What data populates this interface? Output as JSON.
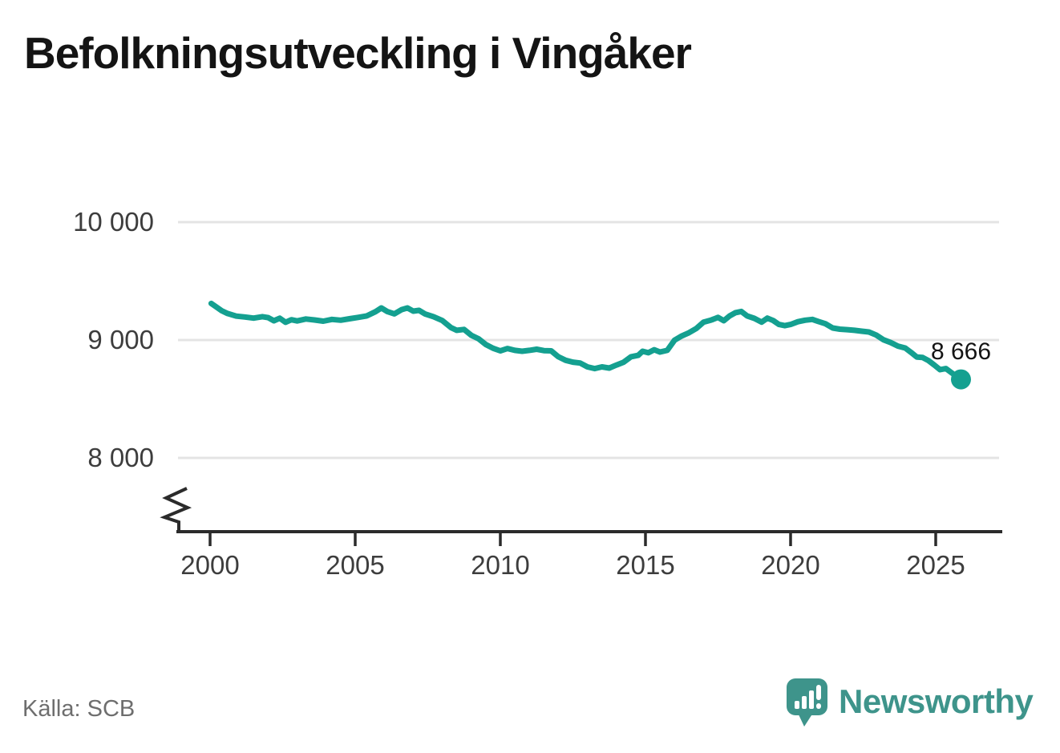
{
  "title": "Befolkningsutveckling i Vingåker",
  "source": "Källa: SCB",
  "brand": {
    "name": "Newsworthy",
    "icon": "speech-bubble-chart-icon",
    "color": "#3e948b"
  },
  "colors": {
    "line": "#14a090",
    "axis": "#2b2b2b",
    "gridline": "#e4e4e4",
    "tick_label": "#3d3d3d",
    "title": "#141414",
    "end_label": "#141414",
    "source": "#6e6e6e",
    "background": "#ffffff"
  },
  "chart_data": {
    "type": "line",
    "title": "Befolkningsutveckling i Vingåker",
    "end_label": "8 666",
    "end_value": 8666,
    "grid": "horizontal",
    "legend": "none",
    "y_axis_break": true,
    "xlim": [
      1998.8,
      2027.3
    ],
    "ylim_visible": [
      7450,
      10250
    ],
    "x_ticks": [
      {
        "label": "2000",
        "value": 2000
      },
      {
        "label": "2005",
        "value": 2005
      },
      {
        "label": "2010",
        "value": 2010
      },
      {
        "label": "2015",
        "value": 2015
      },
      {
        "label": "2020",
        "value": 2020
      },
      {
        "label": "2025",
        "value": 2025
      }
    ],
    "y_ticks": [
      {
        "label": "10 000",
        "value": 10000
      },
      {
        "label": "9 000",
        "value": 9000
      },
      {
        "label": "8 000",
        "value": 8000
      }
    ],
    "series": [
      {
        "points": [
          [
            2000.04,
            9310
          ],
          [
            2000.2,
            9283
          ],
          [
            2000.4,
            9248
          ],
          [
            2000.6,
            9225
          ],
          [
            2000.9,
            9203
          ],
          [
            2001.2,
            9195
          ],
          [
            2001.5,
            9186
          ],
          [
            2001.8,
            9198
          ],
          [
            2002.0,
            9190
          ],
          [
            2002.2,
            9163
          ],
          [
            2002.4,
            9185
          ],
          [
            2002.6,
            9150
          ],
          [
            2002.8,
            9172
          ],
          [
            2003.0,
            9162
          ],
          [
            2003.3,
            9178
          ],
          [
            2003.6,
            9170
          ],
          [
            2003.9,
            9160
          ],
          [
            2004.2,
            9175
          ],
          [
            2004.5,
            9168
          ],
          [
            2004.8,
            9180
          ],
          [
            2005.1,
            9192
          ],
          [
            2005.4,
            9205
          ],
          [
            2005.7,
            9240
          ],
          [
            2005.9,
            9272
          ],
          [
            2006.1,
            9242
          ],
          [
            2006.35,
            9222
          ],
          [
            2006.6,
            9258
          ],
          [
            2006.8,
            9272
          ],
          [
            2007.0,
            9245
          ],
          [
            2007.2,
            9252
          ],
          [
            2007.4,
            9222
          ],
          [
            2007.7,
            9198
          ],
          [
            2008.0,
            9165
          ],
          [
            2008.3,
            9105
          ],
          [
            2008.5,
            9082
          ],
          [
            2008.75,
            9090
          ],
          [
            2009.0,
            9040
          ],
          [
            2009.25,
            9010
          ],
          [
            2009.5,
            8962
          ],
          [
            2009.75,
            8930
          ],
          [
            2010.0,
            8908
          ],
          [
            2010.25,
            8928
          ],
          [
            2010.5,
            8912
          ],
          [
            2010.75,
            8905
          ],
          [
            2011.0,
            8912
          ],
          [
            2011.25,
            8922
          ],
          [
            2011.5,
            8910
          ],
          [
            2011.75,
            8908
          ],
          [
            2012.0,
            8858
          ],
          [
            2012.25,
            8828
          ],
          [
            2012.5,
            8812
          ],
          [
            2012.75,
            8805
          ],
          [
            2013.0,
            8772
          ],
          [
            2013.25,
            8758
          ],
          [
            2013.5,
            8772
          ],
          [
            2013.75,
            8762
          ],
          [
            2014.0,
            8788
          ],
          [
            2014.25,
            8812
          ],
          [
            2014.5,
            8858
          ],
          [
            2014.75,
            8870
          ],
          [
            2014.9,
            8905
          ],
          [
            2015.1,
            8892
          ],
          [
            2015.3,
            8918
          ],
          [
            2015.5,
            8898
          ],
          [
            2015.75,
            8912
          ],
          [
            2016.0,
            8998
          ],
          [
            2016.25,
            9035
          ],
          [
            2016.5,
            9062
          ],
          [
            2016.75,
            9098
          ],
          [
            2017.0,
            9152
          ],
          [
            2017.25,
            9168
          ],
          [
            2017.5,
            9192
          ],
          [
            2017.7,
            9164
          ],
          [
            2017.9,
            9205
          ],
          [
            2018.1,
            9232
          ],
          [
            2018.3,
            9242
          ],
          [
            2018.5,
            9205
          ],
          [
            2018.75,
            9184
          ],
          [
            2019.0,
            9152
          ],
          [
            2019.2,
            9186
          ],
          [
            2019.4,
            9165
          ],
          [
            2019.6,
            9132
          ],
          [
            2019.8,
            9122
          ],
          [
            2020.0,
            9132
          ],
          [
            2020.25,
            9155
          ],
          [
            2020.5,
            9168
          ],
          [
            2020.75,
            9175
          ],
          [
            2020.95,
            9158
          ],
          [
            2021.2,
            9138
          ],
          [
            2021.45,
            9102
          ],
          [
            2021.7,
            9092
          ],
          [
            2021.95,
            9088
          ],
          [
            2022.2,
            9082
          ],
          [
            2022.45,
            9075
          ],
          [
            2022.7,
            9068
          ],
          [
            2022.95,
            9042
          ],
          [
            2023.2,
            9002
          ],
          [
            2023.45,
            8978
          ],
          [
            2023.7,
            8948
          ],
          [
            2023.95,
            8932
          ],
          [
            2024.15,
            8895
          ],
          [
            2024.35,
            8855
          ],
          [
            2024.55,
            8852
          ],
          [
            2024.75,
            8825
          ],
          [
            2024.95,
            8788
          ],
          [
            2025.15,
            8748
          ],
          [
            2025.35,
            8758
          ],
          [
            2025.55,
            8722
          ],
          [
            2025.7,
            8695
          ],
          [
            2025.87,
            8666
          ]
        ]
      }
    ]
  }
}
